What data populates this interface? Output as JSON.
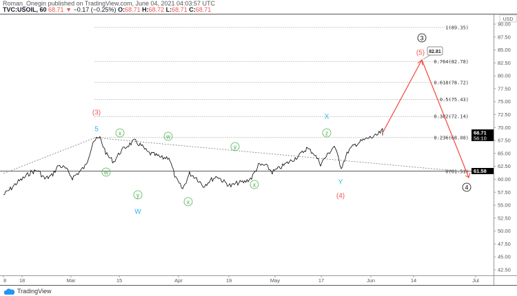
{
  "header": {
    "published": "Roman_Onegin published on TradingView.com, June 04, 2021 04:03:57 UTC",
    "symbol": "TVC:USOIL, 60",
    "last": "68.71",
    "change": "−0.17 (−0.25%)",
    "o_label": "O:",
    "o": "68.71",
    "h_label": "H:",
    "h": "68.72",
    "l_label": "L:",
    "l": "68.71",
    "c_label": "C:",
    "c": "68.71"
  },
  "colors": {
    "up": "#ef5350",
    "price_line": "#000000",
    "fib": "#b2b5be",
    "wave_green": "#4caf50",
    "wave_blue": "#29b6f6",
    "wave_red": "#ef5350"
  },
  "axis": {
    "currency": "USD",
    "y_ticks": [
      "90.00",
      "87.50",
      "85.00",
      "82.50",
      "80.00",
      "77.50",
      "75.00",
      "72.50",
      "70.00",
      "67.50",
      "65.00",
      "62.50",
      "60.00",
      "57.50",
      "55.00",
      "52.50",
      "50.00",
      "47.50",
      "45.00",
      "42.50"
    ],
    "x_ticks": [
      "8",
      "18",
      "Mar",
      "15",
      "Apr",
      "19",
      "May",
      "17",
      "Jun",
      "14",
      "Jul"
    ],
    "price_tag": "68.71",
    "countdown": "56:10",
    "level_tag": "61.58"
  },
  "fib_levels": [
    {
      "label": "1(89.35)",
      "value": 89.35
    },
    {
      "label": "0.764(82.78)",
      "value": 82.78
    },
    {
      "label": "0.618(78.72)",
      "value": 78.72
    },
    {
      "label": "0.5(75.43)",
      "value": 75.43
    },
    {
      "label": "0.382(72.14)",
      "value": 72.14
    },
    {
      "label": "0.236(68.08)",
      "value": 68.08
    },
    {
      "label": "0(61.51)",
      "value": 61.51
    }
  ],
  "target_callout": "82.81",
  "waves": {
    "w3_red": "(3)",
    "w5_blue": "5",
    "x1": "x",
    "w1": "w",
    "y1": "y",
    "W": "W",
    "w2": "w",
    "x2": "x",
    "y2": "y",
    "x3": "x",
    "X": "X",
    "z": "z",
    "Y": "Y",
    "w4_red": "(4)",
    "w5_red": "(5)",
    "c3": "3",
    "c4": "4"
  },
  "chart_data": {
    "type": "line",
    "ylim": [
      42.5,
      90
    ],
    "price_path": [
      57.0,
      58.1,
      59.4,
      60.3,
      61.4,
      61.7,
      60.1,
      60.7,
      62.7,
      62.1,
      60.3,
      61.4,
      62.7,
      67.4,
      68.0,
      64.7,
      63.4,
      65.4,
      66.5,
      67.4,
      66.5,
      65.1,
      64.7,
      64.1,
      64.3,
      60.1,
      58.1,
      61.1,
      60.3,
      58.7,
      59.8,
      60.6,
      59.5,
      58.7,
      59.3,
      59.5,
      60.3,
      62.7,
      62.7,
      61.4,
      62.1,
      63.0,
      63.8,
      64.7,
      66.0,
      65.1,
      63.0,
      64.7,
      66.5,
      62.3,
      65.4,
      66.7,
      67.4,
      68.0,
      68.3,
      69.4,
      68.71
    ],
    "horizontal_level": 61.58,
    "projection": [
      68.71,
      82.81,
      60.0
    ]
  },
  "branding": "TradingView"
}
